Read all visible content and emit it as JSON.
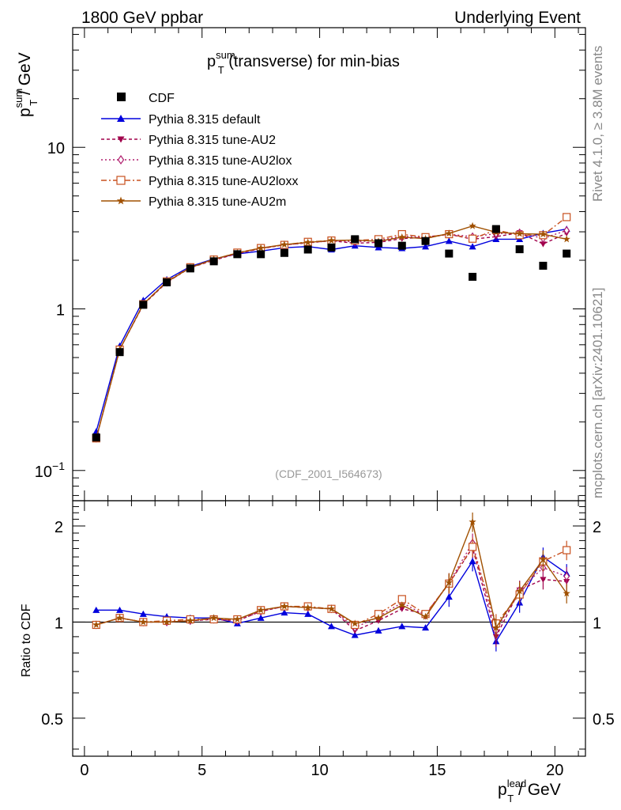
{
  "header": {
    "left": "1800 GeV ppbar",
    "right": "Underlying Event"
  },
  "side_texts": {
    "rivet": "Rivet 4.1.0, ≥ 3.8M events",
    "mcplots": "mcplots.cern.ch [arXiv:2401.10621]"
  },
  "plot_title": {
    "main": "p",
    "sup": "sum",
    "sub": "T",
    "rest": " (transverse) for min-bias"
  },
  "analysis_id": "(CDF_2001_I564673)",
  "main_ylabel": {
    "main": "p",
    "sup": "sum",
    "sub": "T",
    "rest": " / GeV"
  },
  "ratio_ylabel": "Ratio to CDF",
  "xlabel": {
    "main": "p",
    "sup": "lead",
    "sub": "T",
    "rest": " / GeV"
  },
  "main_y_ticks": [
    {
      "label": "10",
      "sup": "−1",
      "value": 0.1
    },
    {
      "label": "1",
      "sup": "",
      "value": 1
    },
    {
      "label": "10",
      "sup": "",
      "value": 10
    }
  ],
  "ratio_y_ticks": [
    {
      "label": "0.5",
      "value": 0.5
    },
    {
      "label": "1",
      "value": 1
    },
    {
      "label": "2",
      "value": 2
    }
  ],
  "x_ticks": [
    {
      "label": "0",
      "value": 0
    },
    {
      "label": "5",
      "value": 5
    },
    {
      "label": "10",
      "value": 10
    },
    {
      "label": "15",
      "value": 15
    },
    {
      "label": "20",
      "value": 20
    }
  ],
  "chart_data": {
    "type": "line",
    "xlim": [
      -0.5,
      21.3
    ],
    "ylim_main": [
      0.065,
      55
    ],
    "ylim_ratio": [
      0.38,
      2.4
    ],
    "yscale": "log",
    "x": [
      0.5,
      1.5,
      2.5,
      3.5,
      4.5,
      5.5,
      6.5,
      7.5,
      8.5,
      9.5,
      10.5,
      11.5,
      12.5,
      13.5,
      14.5,
      15.5,
      16.5,
      17.5,
      18.5,
      19.5,
      20.5
    ],
    "data": {
      "name": "CDF",
      "values": [
        0.16,
        0.54,
        1.06,
        1.46,
        1.78,
        1.97,
        2.18,
        2.18,
        2.22,
        2.33,
        2.4,
        2.7,
        2.55,
        2.46,
        2.63,
        2.2,
        1.58,
        3.12,
        2.34,
        1.85,
        2.2
      ]
    },
    "series": [
      {
        "name": "Pythia 8.315 default",
        "color": "#0000dd",
        "dash": "",
        "marker": "triangle-up",
        "values": [
          0.174,
          0.59,
          1.13,
          1.52,
          1.83,
          2.04,
          2.19,
          2.28,
          2.39,
          2.43,
          2.33,
          2.46,
          2.4,
          2.37,
          2.43,
          2.63,
          2.43,
          2.7,
          2.7,
          2.94,
          3.12
        ]
      },
      {
        "name": "Pythia 8.315 tune-AU2",
        "color": "#a0004b",
        "dash": "4,3",
        "marker": "triangle-down",
        "values": [
          0.158,
          0.56,
          1.06,
          1.46,
          1.8,
          2.0,
          2.2,
          2.36,
          2.49,
          2.57,
          2.64,
          2.55,
          2.58,
          2.72,
          2.78,
          2.9,
          2.7,
          2.8,
          2.96,
          2.52,
          2.94
        ]
      },
      {
        "name": "Pythia 8.315 tune-AU2lox",
        "color": "#b01e6e",
        "dash": "2,3",
        "marker": "diamond",
        "values": [
          0.158,
          0.56,
          1.07,
          1.46,
          1.8,
          2.02,
          2.21,
          2.37,
          2.49,
          2.56,
          2.64,
          2.6,
          2.65,
          2.82,
          2.75,
          2.9,
          2.8,
          2.92,
          2.96,
          2.73,
          3.06
        ]
      },
      {
        "name": "Pythia 8.315 tune-AU2loxx",
        "color": "#c8501e",
        "dash": "7,3,2,3",
        "marker": "square-open",
        "values": [
          0.158,
          0.56,
          1.07,
          1.48,
          1.81,
          2.02,
          2.23,
          2.38,
          2.49,
          2.6,
          2.65,
          2.65,
          2.7,
          2.9,
          2.78,
          2.9,
          2.72,
          3.08,
          2.86,
          2.86,
          3.7
        ]
      },
      {
        "name": "Pythia 8.315 tune-AU2m",
        "color": "#a05000",
        "dash": "",
        "marker": "star",
        "values": [
          0.158,
          0.56,
          1.07,
          1.47,
          1.8,
          2.03,
          2.22,
          2.38,
          2.5,
          2.58,
          2.65,
          2.67,
          2.62,
          2.78,
          2.72,
          2.93,
          3.26,
          2.98,
          2.92,
          2.9,
          2.7
        ]
      }
    ],
    "ratio_values": {
      "Pythia 8.315 default": [
        1.09,
        1.09,
        1.06,
        1.04,
        1.03,
        1.03,
        0.99,
        1.03,
        1.07,
        1.06,
        0.97,
        0.91,
        0.94,
        0.97,
        0.96,
        1.2,
        1.55,
        0.87,
        1.15,
        1.6,
        1.42
      ],
      "Pythia 8.315 tune-AU2": [
        0.98,
        1.03,
        1.0,
        1.0,
        1.01,
        1.02,
        1.01,
        1.08,
        1.12,
        1.11,
        1.1,
        0.94,
        1.01,
        1.1,
        1.06,
        1.32,
        1.71,
        0.9,
        1.26,
        1.36,
        1.34
      ],
      "Pythia 8.315 tune-AU2lox": [
        0.98,
        1.03,
        1.0,
        1.0,
        1.01,
        1.02,
        1.01,
        1.08,
        1.12,
        1.11,
        1.1,
        0.96,
        1.04,
        1.15,
        1.05,
        1.33,
        1.77,
        0.94,
        1.26,
        1.48,
        1.39
      ],
      "Pythia 8.315 tune-AU2loxx": [
        0.98,
        1.03,
        1.0,
        1.01,
        1.02,
        1.02,
        1.02,
        1.09,
        1.12,
        1.12,
        1.1,
        0.98,
        1.06,
        1.18,
        1.06,
        1.32,
        1.72,
        0.99,
        1.22,
        1.55,
        1.68
      ],
      "Pythia 8.315 tune-AU2m": [
        0.98,
        1.03,
        1.0,
        1.0,
        1.01,
        1.03,
        1.02,
        1.09,
        1.12,
        1.11,
        1.1,
        0.99,
        1.03,
        1.13,
        1.04,
        1.33,
        2.06,
        0.96,
        1.25,
        1.57,
        1.23
      ]
    },
    "ratio_reference": 1
  }
}
